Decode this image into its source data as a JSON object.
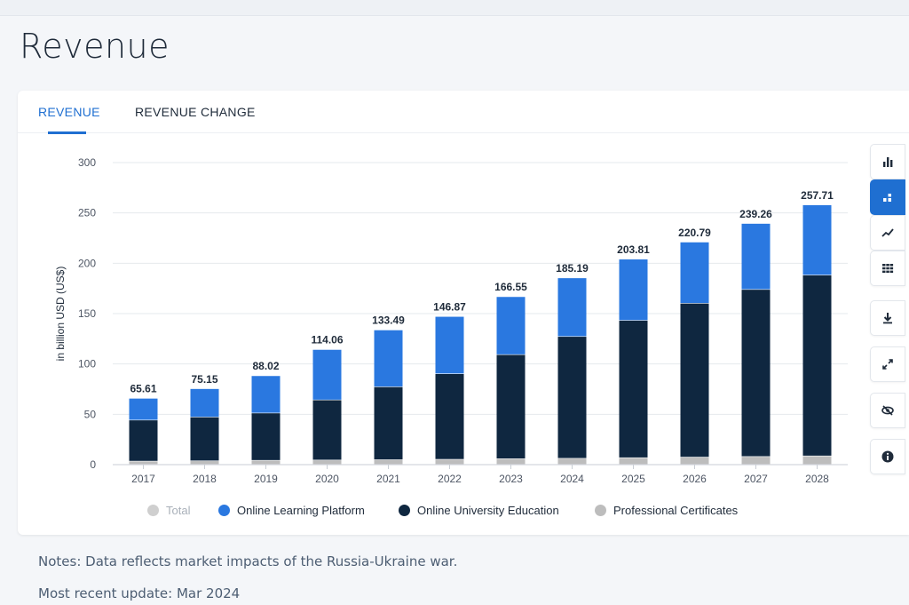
{
  "page": {
    "title": "Revenue"
  },
  "tabs": [
    {
      "label": "REVENUE",
      "active": true
    },
    {
      "label": "REVENUE CHANGE",
      "active": false
    }
  ],
  "colors": {
    "online_learning_platform": "#2a78e0",
    "online_university_education": "#0f2740",
    "professional_certificates": "#bdbdbd",
    "total": "#cfcfcf",
    "accent": "#1f6fd1"
  },
  "chart_data": {
    "type": "bar",
    "stacked": true,
    "categories": [
      "2017",
      "2018",
      "2019",
      "2020",
      "2021",
      "2022",
      "2023",
      "2024",
      "2025",
      "2026",
      "2027",
      "2028"
    ],
    "ylabel": "in billion USD (US$)",
    "xlabel": "",
    "ylim": [
      0,
      300
    ],
    "yticks": [
      0,
      50,
      100,
      150,
      200,
      250,
      300
    ],
    "grid": true,
    "legend_position": "bottom",
    "totals": [
      65.61,
      75.15,
      88.02,
      114.06,
      133.49,
      146.87,
      166.55,
      185.19,
      203.81,
      220.79,
      239.26,
      257.71
    ],
    "total_labels": [
      "65.61",
      "75.15",
      "88.02",
      "114.06",
      "133.49",
      "146.87",
      "166.55",
      "185.19",
      "203.81",
      "220.79",
      "239.26",
      "257.71"
    ],
    "series": [
      {
        "name": "Professional Certificates",
        "color": "#bdbdbd",
        "values": [
          3.2,
          3.5,
          4.0,
          4.3,
          4.6,
          5.0,
          5.6,
          6.0,
          6.6,
          7.2,
          7.8,
          8.4
        ]
      },
      {
        "name": "Online University Education",
        "color": "#0f2740",
        "values": [
          40.8,
          43.5,
          47.0,
          59.7,
          72.4,
          85.0,
          103.4,
          121.0,
          136.4,
          152.8,
          165.9,
          179.6
        ]
      },
      {
        "name": "Online Learning Platform",
        "color": "#2a78e0",
        "values": [
          21.61,
          28.15,
          37.02,
          50.06,
          56.49,
          56.87,
          57.55,
          58.19,
          60.81,
          60.79,
          65.56,
          69.71
        ]
      }
    ]
  },
  "legend": [
    {
      "label": "Total",
      "color": "#cfcfcf",
      "disabled": true
    },
    {
      "label": "Online Learning Platform",
      "color": "#2a78e0",
      "disabled": false
    },
    {
      "label": "Online University Education",
      "color": "#0f2740",
      "disabled": false
    },
    {
      "label": "Professional Certificates",
      "color": "#bdbdbd",
      "disabled": false
    }
  ],
  "tools": [
    {
      "icon": "bar-chart-icon",
      "active": false
    },
    {
      "icon": "stacked-bar-icon",
      "active": true
    },
    {
      "icon": "line-chart-icon",
      "active": false
    },
    {
      "icon": "table-icon",
      "active": false
    },
    {
      "icon": "download-icon",
      "active": false
    },
    {
      "icon": "fullscreen-icon",
      "active": false
    },
    {
      "icon": "hide-icon",
      "active": false
    },
    {
      "icon": "info-icon",
      "active": false
    }
  ],
  "footer": {
    "notes": "Notes: Data reflects market impacts of the Russia-Ukraine war.",
    "update": "Most recent update: Mar 2024"
  }
}
